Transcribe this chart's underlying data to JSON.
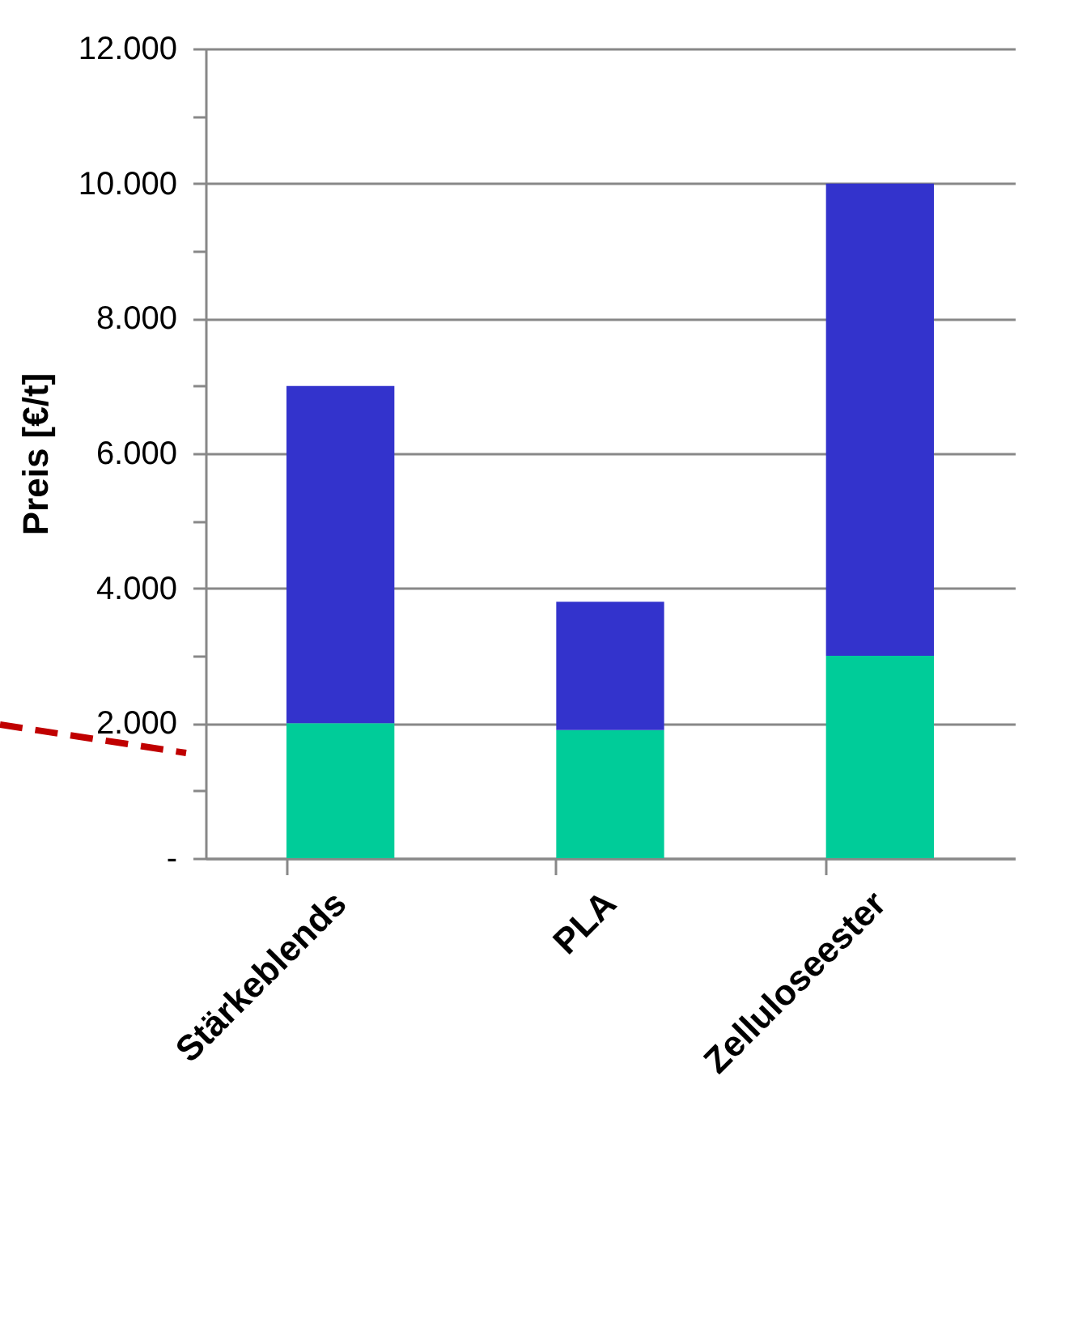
{
  "chart_data": {
    "type": "bar",
    "stacked": true,
    "ylabel": "Preis [€/t]",
    "categories": [
      "Stärkeblends",
      "PLA",
      "Zelluloseester"
    ],
    "series": [
      {
        "color": "#00cc99",
        "values": [
          2000,
          1900,
          3000
        ]
      },
      {
        "color": "#3333cc",
        "values": [
          5000,
          1900,
          7000
        ]
      }
    ],
    "ylim": [
      0,
      12000
    ],
    "yticks": [
      {
        "value": 0,
        "label": "-"
      },
      {
        "value": 1000,
        "label": null
      },
      {
        "value": 2000,
        "label": "2.000"
      },
      {
        "value": 3000,
        "label": null
      },
      {
        "value": 4000,
        "label": "4.000"
      },
      {
        "value": 5000,
        "label": null
      },
      {
        "value": 6000,
        "label": "6.000"
      },
      {
        "value": 7000,
        "label": null
      },
      {
        "value": 8000,
        "label": "8.000"
      },
      {
        "value": 9000,
        "label": null
      },
      {
        "value": 10000,
        "label": "10.000"
      },
      {
        "value": 11000,
        "label": null
      },
      {
        "value": 12000,
        "label": "12.000"
      }
    ],
    "grid": "y"
  }
}
